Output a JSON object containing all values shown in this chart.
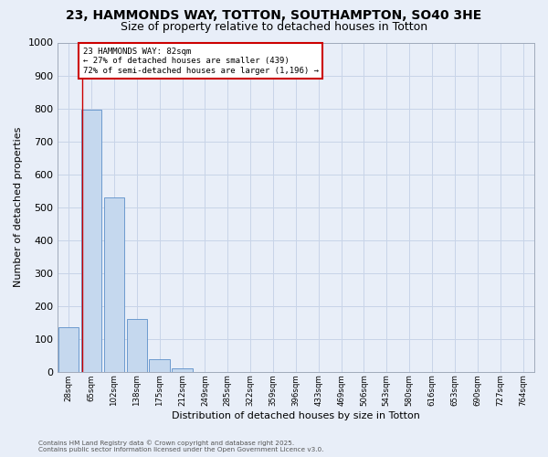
{
  "title": "23, HAMMONDS WAY, TOTTON, SOUTHAMPTON, SO40 3HE",
  "subtitle": "Size of property relative to detached houses in Totton",
  "xlabel": "Distribution of detached houses by size in Totton",
  "ylabel": "Number of detached properties",
  "categories": [
    "28sqm",
    "65sqm",
    "102sqm",
    "138sqm",
    "175sqm",
    "212sqm",
    "249sqm",
    "285sqm",
    "322sqm",
    "359sqm",
    "396sqm",
    "433sqm",
    "469sqm",
    "506sqm",
    "543sqm",
    "580sqm",
    "616sqm",
    "653sqm",
    "690sqm",
    "727sqm",
    "764sqm"
  ],
  "values": [
    135,
    795,
    530,
    160,
    38,
    10,
    0,
    0,
    0,
    0,
    0,
    0,
    0,
    0,
    0,
    0,
    0,
    0,
    0,
    0,
    0
  ],
  "bar_color": "#c5d8ee",
  "bar_edge_color": "#5b8fc9",
  "grid_color": "#c8d4e8",
  "background_color": "#e8eef8",
  "fig_background_color": "#e8eef8",
  "property_line_bin": 1,
  "annotation_text_line1": "23 HAMMONDS WAY: 82sqm",
  "annotation_text_line2": "← 27% of detached houses are smaller (439)",
  "annotation_text_line3": "72% of semi-detached houses are larger (1,196) →",
  "annotation_box_color": "#ffffff",
  "annotation_box_edge": "#cc0000",
  "ymax": 1000,
  "yticks": [
    0,
    100,
    200,
    300,
    400,
    500,
    600,
    700,
    800,
    900,
    1000
  ],
  "title_fontsize": 10,
  "subtitle_fontsize": 9,
  "footer_line1": "Contains HM Land Registry data © Crown copyright and database right 2025.",
  "footer_line2": "Contains public sector information licensed under the Open Government Licence v3.0."
}
